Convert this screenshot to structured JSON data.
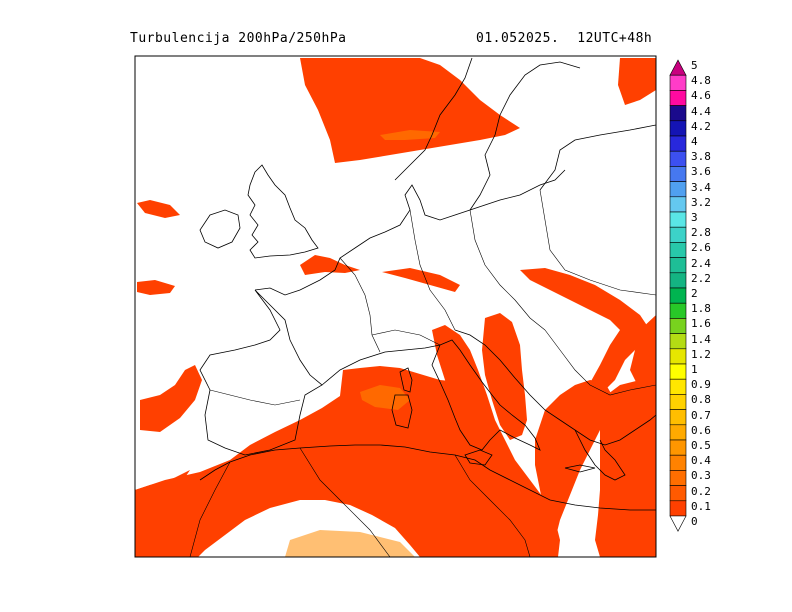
{
  "header": {
    "title": "Turbulencija 200hPa/250hPa",
    "date": "01.052025.",
    "run": "12UTC+48h"
  },
  "map": {
    "field": "turbulence",
    "fill_color": "#ff4000",
    "higher_color": "#ff8a00"
  },
  "legend": {
    "levels": [
      "5",
      "4.8",
      "4.6",
      "4.4",
      "4.2",
      "4",
      "3.8",
      "3.6",
      "3.4",
      "3.2",
      "3",
      "2.8",
      "2.6",
      "2.4",
      "2.2",
      "2",
      "1.8",
      "1.6",
      "1.4",
      "1.2",
      "1",
      "0.9",
      "0.8",
      "0.7",
      "0.6",
      "0.5",
      "0.4",
      "0.3",
      "0.2",
      "0.1",
      "0"
    ],
    "colors": [
      "#c8007f",
      "#ff3cc8",
      "#ff0aa0",
      "#1a0a8c",
      "#1414b4",
      "#2828dc",
      "#3c50f0",
      "#4678f0",
      "#50a0f0",
      "#64c8f0",
      "#5ae6e6",
      "#3cd2c8",
      "#28c8aa",
      "#1ebe96",
      "#14b482",
      "#00b450",
      "#28c828",
      "#78d21e",
      "#b4dc14",
      "#e6e600",
      "#ffff00",
      "#ffe600",
      "#ffd200",
      "#ffbe00",
      "#ffaa00",
      "#ff9600",
      "#ff8200",
      "#ff6e00",
      "#ff5a00",
      "#ff4000"
    ]
  }
}
